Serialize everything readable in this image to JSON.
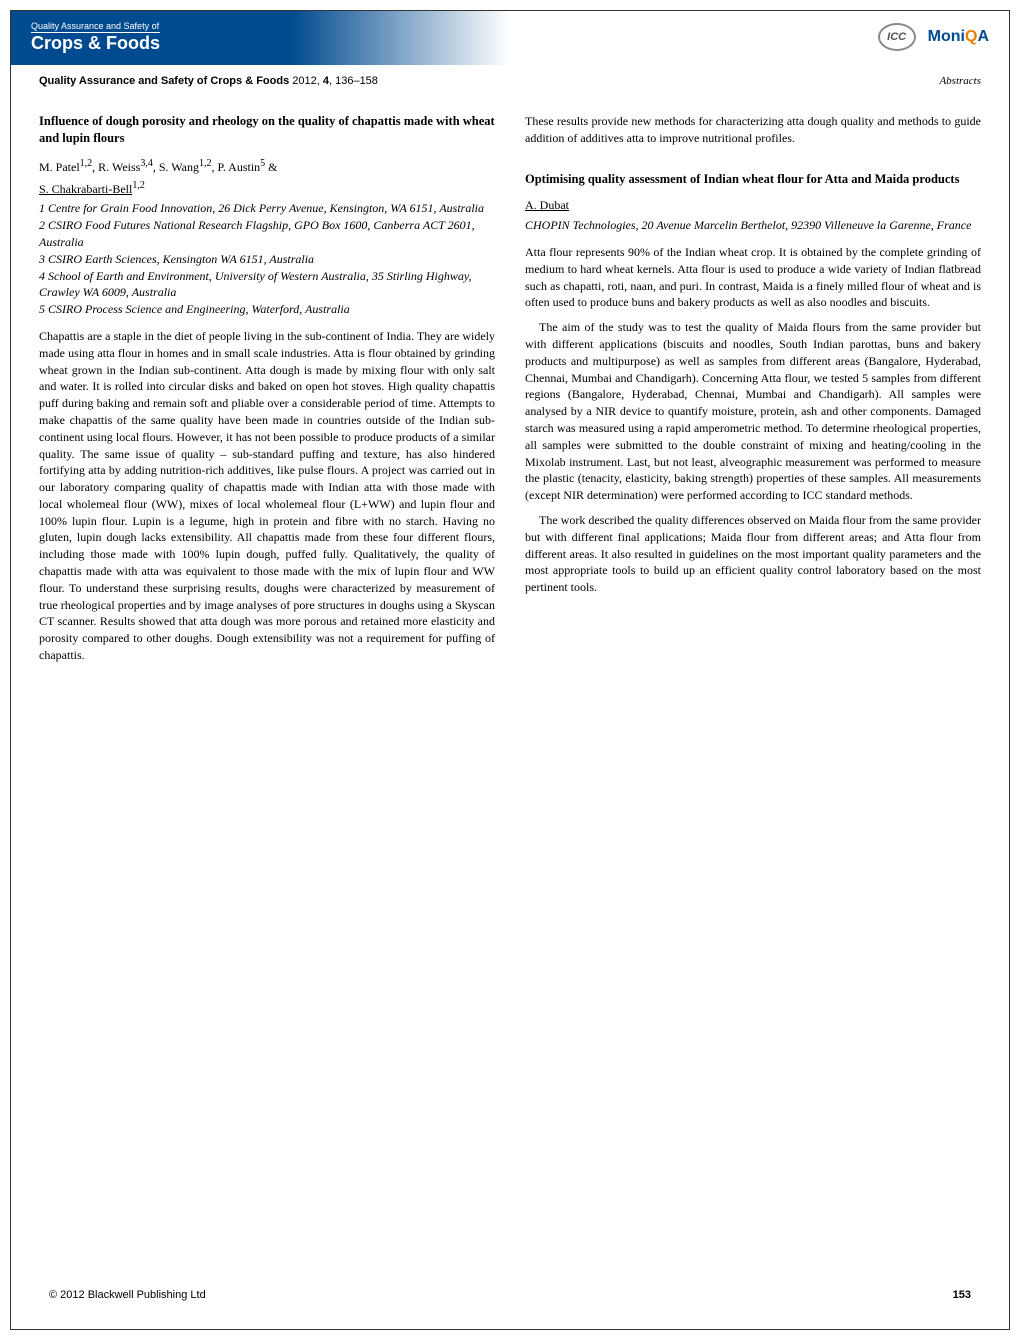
{
  "header": {
    "subtitle": "Quality Assurance and Safety of",
    "title": "Crops & Foods",
    "icc": "ICC",
    "moniqa_prefix": "Moni",
    "moniqa_q": "Q",
    "moniqa_suffix": "A"
  },
  "journal": {
    "name_bold": "Quality Assurance and Safety of Crops & Foods",
    "year": "2012,",
    "volume": "4",
    "pages": ", 136–158",
    "section": "Abstracts"
  },
  "article1": {
    "title": "Influence of dough porosity and rheology on the quality of chapattis made with wheat and lupin flours",
    "authors_line1": "M. Patel",
    "authors_sup1": "1,2",
    "authors_line2": ", R. Weiss",
    "authors_sup2": "3,4",
    "authors_line3": ", S. Wang",
    "authors_sup3": "1,2",
    "authors_line4": ", P. Austin",
    "authors_sup4": "5",
    "authors_amp": " &",
    "presenter": "S. Chakrabarti-Bell",
    "presenter_sup": "1,2",
    "aff1": "1 Centre for Grain Food Innovation, 26 Dick Perry Avenue, Kensington, WA 6151, Australia",
    "aff2": "2 CSIRO Food Futures National Research Flagship, GPO Box 1600, Canberra ACT 2601, Australia",
    "aff3": "3 CSIRO Earth Sciences, Kensington WA 6151, Australia",
    "aff4": "4 School of Earth and Environment, University of Western Australia, 35 Stirling Highway, Crawley WA 6009, Australia",
    "aff5": "5 CSIRO Process Science and Engineering, Waterford, Australia",
    "body": "Chapattis are a staple in the diet of people living in the sub-continent of India. They are widely made using atta flour in homes and in small scale industries. Atta is flour obtained by grinding wheat grown in the Indian sub-continent. Atta dough is made by mixing flour with only salt and water. It is rolled into circular disks and baked on open hot stoves. High quality chapattis puff during baking and remain soft and pliable over a considerable period of time. Attempts to make chapattis of the same quality have been made in countries outside of the Indian sub-continent using local flours. However, it has not been possible to produce products of a similar quality. The same issue of quality – sub-standard puffing and texture, has also hindered fortifying atta by adding nutrition-rich additives, like pulse flours. A project was carried out in our laboratory comparing quality of chapattis made with Indian atta with those made with local wholemeal flour (WW), mixes of local wholemeal flour (L+WW) and lupin flour and 100% lupin flour. Lupin is a legume, high in protein and fibre with no starch. Having no gluten, lupin dough lacks extensibility. All chapattis made from these four different flours, including those made with 100% lupin dough, puffed fully. Qualitatively, the quality of chapattis made with atta was equivalent to those made with the mix of lupin flour and WW flour. To understand these surprising results, doughs were characterized by measurement of true rheological properties and by image analyses of pore structures in doughs using a Skyscan CT scanner. Results showed that atta dough was more porous and retained more elasticity and porosity compared to other doughs. Dough extensibility was not a requirement for puffing of chapattis."
  },
  "article1_continuation": "These results provide new methods for characterizing atta dough quality and methods to guide addition of additives atta to improve nutritional profiles.",
  "article2": {
    "title": "Optimising quality assessment of Indian wheat flour for Atta and Maida products",
    "presenter": "A. Dubat",
    "aff": "CHOPIN Technologies, 20 Avenue Marcelin Berthelot, 92390 Villeneuve la Garenne, France",
    "para1": "Atta flour represents 90% of the Indian wheat crop. It is obtained by the complete grinding of medium to hard wheat kernels. Atta flour is used to produce a wide variety of Indian flatbread such as chapatti, roti, naan, and puri. In contrast, Maida is a finely milled flour of wheat and is often used to produce buns and bakery products as well as also noodles and biscuits.",
    "para2": "The aim of the study was to test the quality of Maida flours from the same provider but with different applications (biscuits and noodles, South Indian parottas, buns and bakery products and multipurpose) as well as samples from different areas (Bangalore, Hyderabad, Chennai, Mumbai and Chandigarh). Concerning Atta flour, we tested 5 samples from different regions (Bangalore, Hyderabad, Chennai, Mumbai and Chandigarh). All samples were analysed by a NIR device to quantify moisture, protein, ash and other components. Damaged starch was measured using a rapid amperometric method. To determine rheological properties, all samples were submitted to the double constraint of mixing and heating/cooling in the Mixolab instrument. Last, but not least, alveographic measurement was performed to measure the plastic (tenacity, elasticity, baking strength) properties of these samples. All measurements (except NIR determination) were performed according to ICC standard methods.",
    "para3": "The work described the quality differences observed on Maida flour from the same provider but with different final applications; Maida flour from different areas; and Atta flour from different areas. It also resulted in guidelines on the most important quality parameters and the most appropriate tools to build up an efficient quality control laboratory based on the most pertinent tools."
  },
  "footer": {
    "copyright": "© 2012 Blackwell Publishing Ltd",
    "page": "153"
  }
}
